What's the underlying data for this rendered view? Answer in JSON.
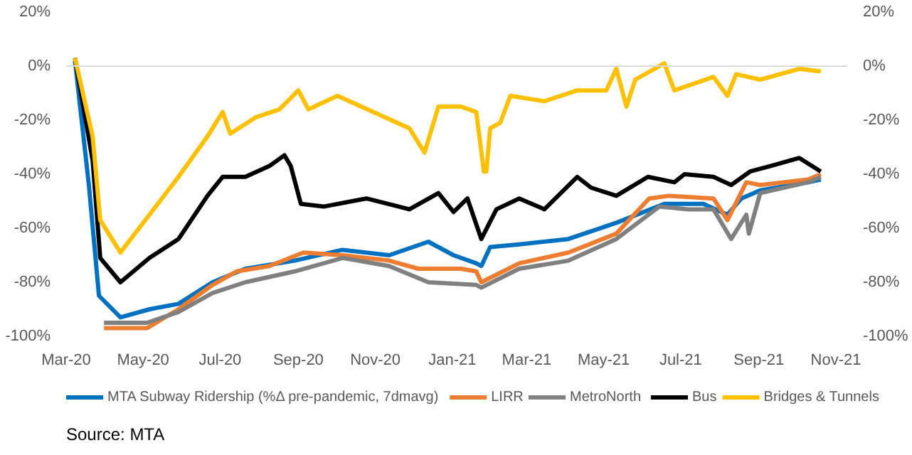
{
  "chart_data": {
    "type": "line",
    "annotations": [
      "Source: MTA"
    ],
    "xlim": [
      "2020-03-01",
      "2021-11-10"
    ],
    "xticks": [
      {
        "value": "2020-03-01",
        "label": "Mar-20"
      },
      {
        "value": "2020-05-01",
        "label": "May-20"
      },
      {
        "value": "2020-07-01",
        "label": "Jul-20"
      },
      {
        "value": "2020-09-01",
        "label": "Sep-20"
      },
      {
        "value": "2020-11-01",
        "label": "Nov-20"
      },
      {
        "value": "2021-01-01",
        "label": "Jan-21"
      },
      {
        "value": "2021-03-01",
        "label": "Mar-21"
      },
      {
        "value": "2021-05-01",
        "label": "May-21"
      },
      {
        "value": "2021-07-01",
        "label": "Jul-21"
      },
      {
        "value": "2021-09-01",
        "label": "Sep-21"
      },
      {
        "value": "2021-11-01",
        "label": "Nov-21"
      }
    ],
    "ylim": [
      -100,
      20
    ],
    "yticks": [
      {
        "value": -100,
        "label": "-100%"
      },
      {
        "value": -80,
        "label": "-80%"
      },
      {
        "value": -60,
        "label": "-60%"
      },
      {
        "value": -40,
        "label": "-40%"
      },
      {
        "value": -20,
        "label": "-20%"
      },
      {
        "value": 0,
        "label": "0%"
      },
      {
        "value": 20,
        "label": "20%"
      }
    ],
    "y2lim": [
      -100,
      20
    ],
    "y2ticks": [
      {
        "value": -100,
        "label": "-100%"
      },
      {
        "value": -80,
        "label": "-80%"
      },
      {
        "value": -60,
        "label": "-60%"
      },
      {
        "value": -40,
        "label": "-40%"
      },
      {
        "value": -20,
        "label": "-20%"
      },
      {
        "value": 0,
        "label": "0%"
      },
      {
        "value": 20,
        "label": "20%"
      }
    ],
    "ref_lines": [
      {
        "axis": "y",
        "value": 0,
        "color": "#d9d9d9"
      }
    ],
    "legend": "bottom",
    "line_style": "solid",
    "series": [
      {
        "name": "MTA Subway Ridership (%Δ pre-pandemic, 7dmavg)",
        "color": "#0070c0",
        "x": [
          "2020-03-08",
          "2020-03-19",
          "2020-03-27",
          "2020-04-13",
          "2020-05-06",
          "2020-05-29",
          "2020-06-25",
          "2020-07-21",
          "2020-08-29",
          "2020-10-06",
          "2020-11-12",
          "2020-12-13",
          "2021-01-02",
          "2021-01-20",
          "2021-01-24",
          "2021-01-31",
          "2021-02-23",
          "2021-04-03",
          "2021-05-11",
          "2021-06-18",
          "2021-07-19",
          "2021-08-07",
          "2021-08-18",
          "2021-09-02",
          "2021-10-10",
          "2021-10-20"
        ],
        "values": [
          2,
          -44,
          -85,
          -93,
          -90,
          -88,
          -80,
          -75,
          -72,
          -68,
          -70,
          -65,
          -70,
          -73,
          -74,
          -67,
          -66,
          -64,
          -58,
          -51,
          -51,
          -55,
          -49,
          -46,
          -43,
          -42
        ]
      },
      {
        "name": "LIRR",
        "color": "#ed7d31",
        "x": [
          "2020-03-31",
          "2020-05-04",
          "2020-05-29",
          "2020-06-25",
          "2020-07-14",
          "2020-08-09",
          "2020-09-05",
          "2020-10-06",
          "2020-11-12",
          "2020-12-05",
          "2021-01-08",
          "2021-01-20",
          "2021-01-24",
          "2021-02-23",
          "2021-04-03",
          "2021-05-11",
          "2021-06-06",
          "2021-06-22",
          "2021-07-27",
          "2021-08-07",
          "2021-08-22",
          "2021-09-02",
          "2021-10-10",
          "2021-10-20"
        ],
        "values": [
          -97,
          -97,
          -90,
          -81,
          -76,
          -74,
          -69,
          -70,
          -72,
          -75,
          -75,
          -76,
          -80,
          -73,
          -69,
          -62,
          -49,
          -48,
          -49,
          -57,
          -43,
          -44,
          -42,
          -40
        ]
      },
      {
        "name": "MetroNorth",
        "color": "#808080",
        "x": [
          "2020-03-31",
          "2020-05-04",
          "2020-05-29",
          "2020-06-25",
          "2020-07-21",
          "2020-08-29",
          "2020-10-06",
          "2020-11-12",
          "2020-12-13",
          "2021-01-20",
          "2021-01-24",
          "2021-02-23",
          "2021-04-03",
          "2021-05-11",
          "2021-06-14",
          "2021-07-07",
          "2021-07-27",
          "2021-08-10",
          "2021-08-22",
          "2021-08-24",
          "2021-09-02",
          "2021-10-10",
          "2021-10-20"
        ],
        "values": [
          -95,
          -95,
          -91,
          -84,
          -80,
          -76,
          -71,
          -74,
          -80,
          -81,
          -82,
          -75,
          -72,
          -64,
          -52,
          -53,
          -53,
          -64,
          -55,
          -62,
          -47,
          -43,
          -41
        ]
      },
      {
        "name": "Bus",
        "color": "#000000",
        "x": [
          "2020-03-08",
          "2020-03-22",
          "2020-03-28",
          "2020-04-13",
          "2020-05-06",
          "2020-05-29",
          "2020-06-21",
          "2020-07-03",
          "2020-07-21",
          "2020-08-09",
          "2020-08-21",
          "2020-08-26",
          "2020-09-03",
          "2020-09-21",
          "2020-10-25",
          "2020-11-28",
          "2020-12-21",
          "2021-01-02",
          "2021-01-13",
          "2021-01-24",
          "2021-02-05",
          "2021-02-23",
          "2021-03-15",
          "2021-04-10",
          "2021-04-21",
          "2021-05-11",
          "2021-06-05",
          "2021-06-26",
          "2021-07-04",
          "2021-07-27",
          "2021-08-10",
          "2021-08-25",
          "2021-09-10",
          "2021-10-03",
          "2021-10-20"
        ],
        "values": [
          3,
          -35,
          -71,
          -80,
          -71,
          -64,
          -48,
          -41,
          -41,
          -37,
          -33,
          -37,
          -51,
          -52,
          -49,
          -53,
          -47,
          -54,
          -49,
          -64,
          -53,
          -49,
          -53,
          -41,
          -45,
          -48,
          -41,
          -43,
          -40,
          -41,
          -44,
          -39,
          -37,
          -34,
          -39
        ]
      },
      {
        "name": "Bridges & Tunnels",
        "color": "#ffc000",
        "x": [
          "2020-03-08",
          "2020-03-22",
          "2020-03-28",
          "2020-04-13",
          "2020-05-06",
          "2020-05-29",
          "2020-06-21",
          "2020-07-03",
          "2020-07-09",
          "2020-07-29",
          "2020-08-17",
          "2020-09-01",
          "2020-09-09",
          "2020-10-02",
          "2020-11-09",
          "2020-11-28",
          "2020-12-10",
          "2020-12-21",
          "2021-01-08",
          "2021-01-20",
          "2021-01-26",
          "2021-01-28",
          "2021-01-31",
          "2021-02-08",
          "2021-02-16",
          "2021-03-15",
          "2021-04-10",
          "2021-05-03",
          "2021-05-11",
          "2021-05-19",
          "2021-05-26",
          "2021-06-18",
          "2021-06-26",
          "2021-07-27",
          "2021-08-07",
          "2021-08-14",
          "2021-09-02",
          "2021-10-03",
          "2021-10-20"
        ],
        "values": [
          3,
          -26,
          -57,
          -69,
          -55,
          -41,
          -26,
          -17,
          -25,
          -19,
          -16,
          -9,
          -16,
          -11,
          -19,
          -23,
          -32,
          -15,
          -15,
          -17,
          -39,
          -39,
          -23,
          -21,
          -11,
          -13,
          -9,
          -9,
          -1,
          -15,
          -5,
          1,
          -9,
          -4,
          -11,
          -3,
          -5,
          -1,
          -2
        ]
      }
    ]
  }
}
